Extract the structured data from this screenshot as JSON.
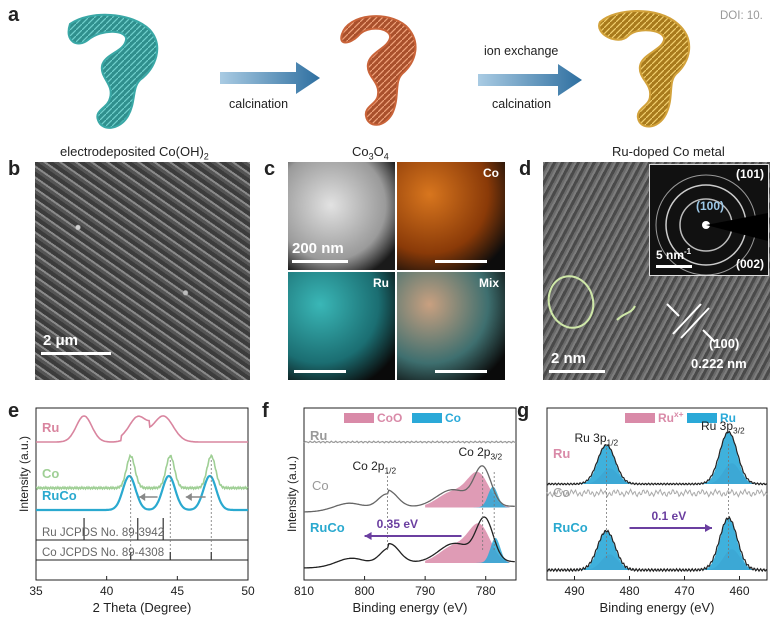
{
  "doi": "DOI: 10.",
  "panel_a": {
    "label": "a",
    "step1_caption": "electrodeposited Co(OH)",
    "step1_sub": "2",
    "arrow1_label": "calcination",
    "step2_caption_main": "Co",
    "step2_sub1": "3",
    "step2_mid": "O",
    "step2_sub2": "4",
    "arrow2_top_label": "ion exchange",
    "arrow2_bottom_label": "calcination",
    "step3_caption": "Ru-doped Co metal",
    "colors": {
      "cohoh2": "#3aa8a6",
      "co3o4": "#c9643a",
      "ruco": "#d2a23b",
      "arrow": "#2e6fa0"
    }
  },
  "panel_b": {
    "label": "b",
    "scale": "2 μm"
  },
  "panel_c": {
    "label": "c",
    "scale": "200 nm",
    "maps": [
      "Co",
      "Ru",
      "Mix"
    ]
  },
  "panel_d": {
    "label": "d",
    "scale": "2 nm",
    "inset_scale": "5 nm",
    "inset_scale_sup": "-1",
    "rings": [
      "(101)",
      "(100)",
      "(002)"
    ],
    "plane": "(100)",
    "spacing": "0.222 nm"
  },
  "panel_e": {
    "label": "e"
  },
  "panel_f": {
    "label": "f"
  },
  "panel_g": {
    "label": "g"
  },
  "chart_data": [
    {
      "type": "line",
      "panel": "e",
      "xlabel": "2 Theta (Degree)",
      "ylabel": "Intensity (a.u.)",
      "xlim": [
        35,
        50
      ],
      "x_ticks": [
        "35",
        "40",
        "45",
        "50"
      ],
      "series": [
        {
          "name": "Ru",
          "color": "#d9859f",
          "peaks": [
            38.4,
            42.2,
            44.0
          ]
        },
        {
          "name": "Co",
          "color": "#9fcf95",
          "peaks": [
            41.7,
            44.5,
            47.4
          ]
        },
        {
          "name": "RuCo",
          "color": "#2aa9cf",
          "peaks": [
            41.6,
            44.4,
            47.3
          ]
        }
      ],
      "references": [
        {
          "label": "Ru JCPDS No. 89-3942",
          "lines": [
            38.4,
            42.2,
            44.0
          ]
        },
        {
          "label": "Co JCPDS No. 89-4308",
          "lines": [
            41.7,
            44.5,
            47.4
          ]
        }
      ]
    },
    {
      "type": "line",
      "panel": "f",
      "xlabel": "Binding energy (eV)",
      "ylabel": "Intensity (a.u.)",
      "xlim": [
        810,
        775
      ],
      "x_ticks": [
        "810",
        "800",
        "790",
        "780"
      ],
      "legend": [
        "CoO",
        "Co"
      ],
      "legend_colors": [
        "#d98aa8",
        "#2aa9d8"
      ],
      "series": [
        "Ru",
        "Co",
        "RuCo"
      ],
      "series_colors": [
        "#999999",
        "#999999",
        "#2aa9cf"
      ],
      "annotations": {
        "co_2p12": "Co 2p",
        "co_2p12_sub": "1/2",
        "co_2p32": "Co 2p",
        "co_2p32_sub": "3/2",
        "shift": "0.35 eV"
      }
    },
    {
      "type": "line",
      "panel": "g",
      "xlabel": "Binding energy (eV)",
      "xlim": [
        495,
        455
      ],
      "x_ticks": [
        "490",
        "480",
        "470",
        "460"
      ],
      "legend": [
        "Ru",
        "Ru"
      ],
      "legend_sup": "x+",
      "legend_colors": [
        "#d98aa8",
        "#2aa9d8"
      ],
      "series": [
        "Ru",
        "Co",
        "RuCo"
      ],
      "series_colors": [
        "#d98aa8",
        "#999999",
        "#2aa9cf"
      ],
      "annotations": {
        "ru_3p12": "Ru 3p",
        "ru_3p12_sub": "1/2",
        "ru_3p32": "Ru 3p",
        "ru_3p32_sub": "3/2",
        "shift": "0.1 eV"
      }
    }
  ]
}
